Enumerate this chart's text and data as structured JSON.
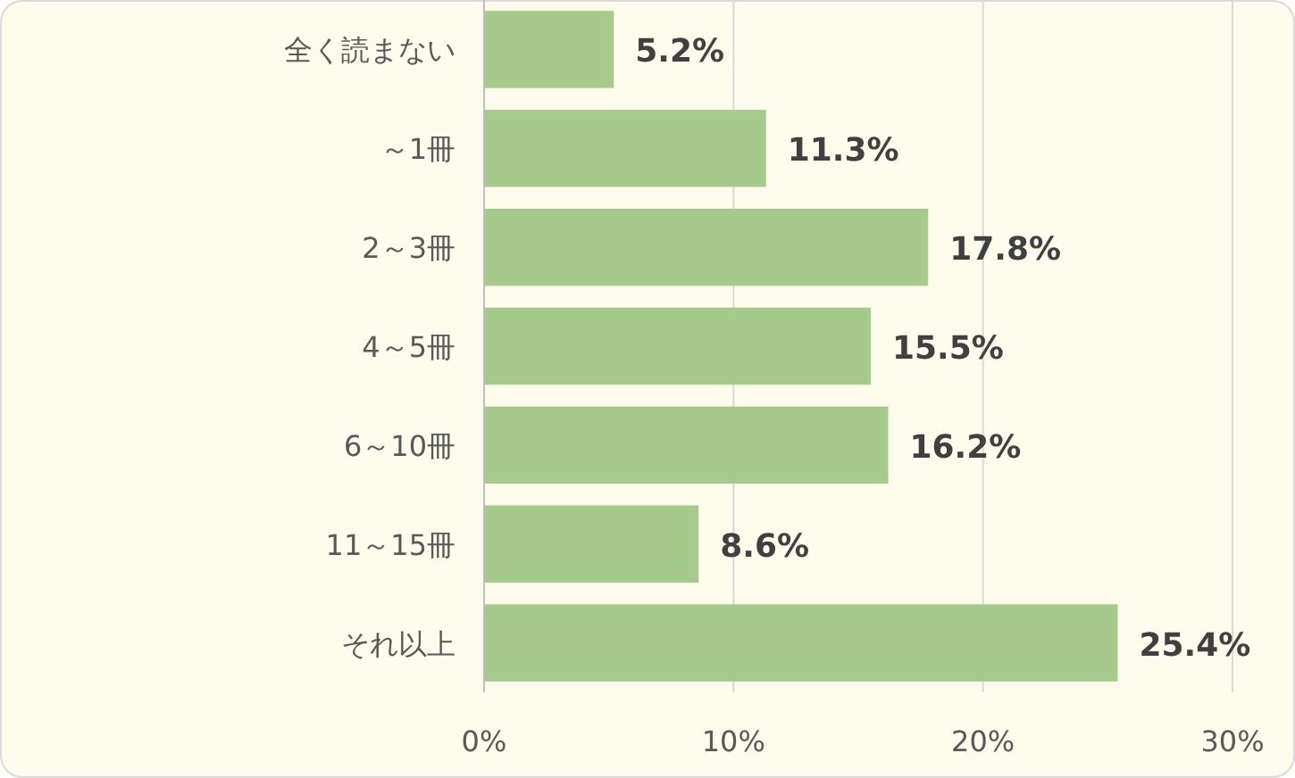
{
  "chart_data": {
    "type": "bar",
    "orientation": "horizontal",
    "categories": [
      "全く読まない",
      "～1冊",
      "2～3冊",
      "4～5冊",
      "6～10冊",
      "11～15冊",
      "それ以上"
    ],
    "values": [
      5.2,
      11.3,
      17.8,
      15.5,
      16.2,
      8.6,
      25.4
    ],
    "value_labels": [
      "5.2%",
      "11.3%",
      "17.8%",
      "15.5%",
      "16.2%",
      "8.6%",
      "25.4%"
    ],
    "color": "#a6ca8b",
    "xlim": [
      0,
      30
    ],
    "xticks": [
      {
        "value": 0,
        "label": "0%"
      },
      {
        "value": 10,
        "label": "10%"
      },
      {
        "value": 20,
        "label": "20%"
      },
      {
        "value": 30,
        "label": "30%"
      }
    ],
    "grid": "x"
  }
}
